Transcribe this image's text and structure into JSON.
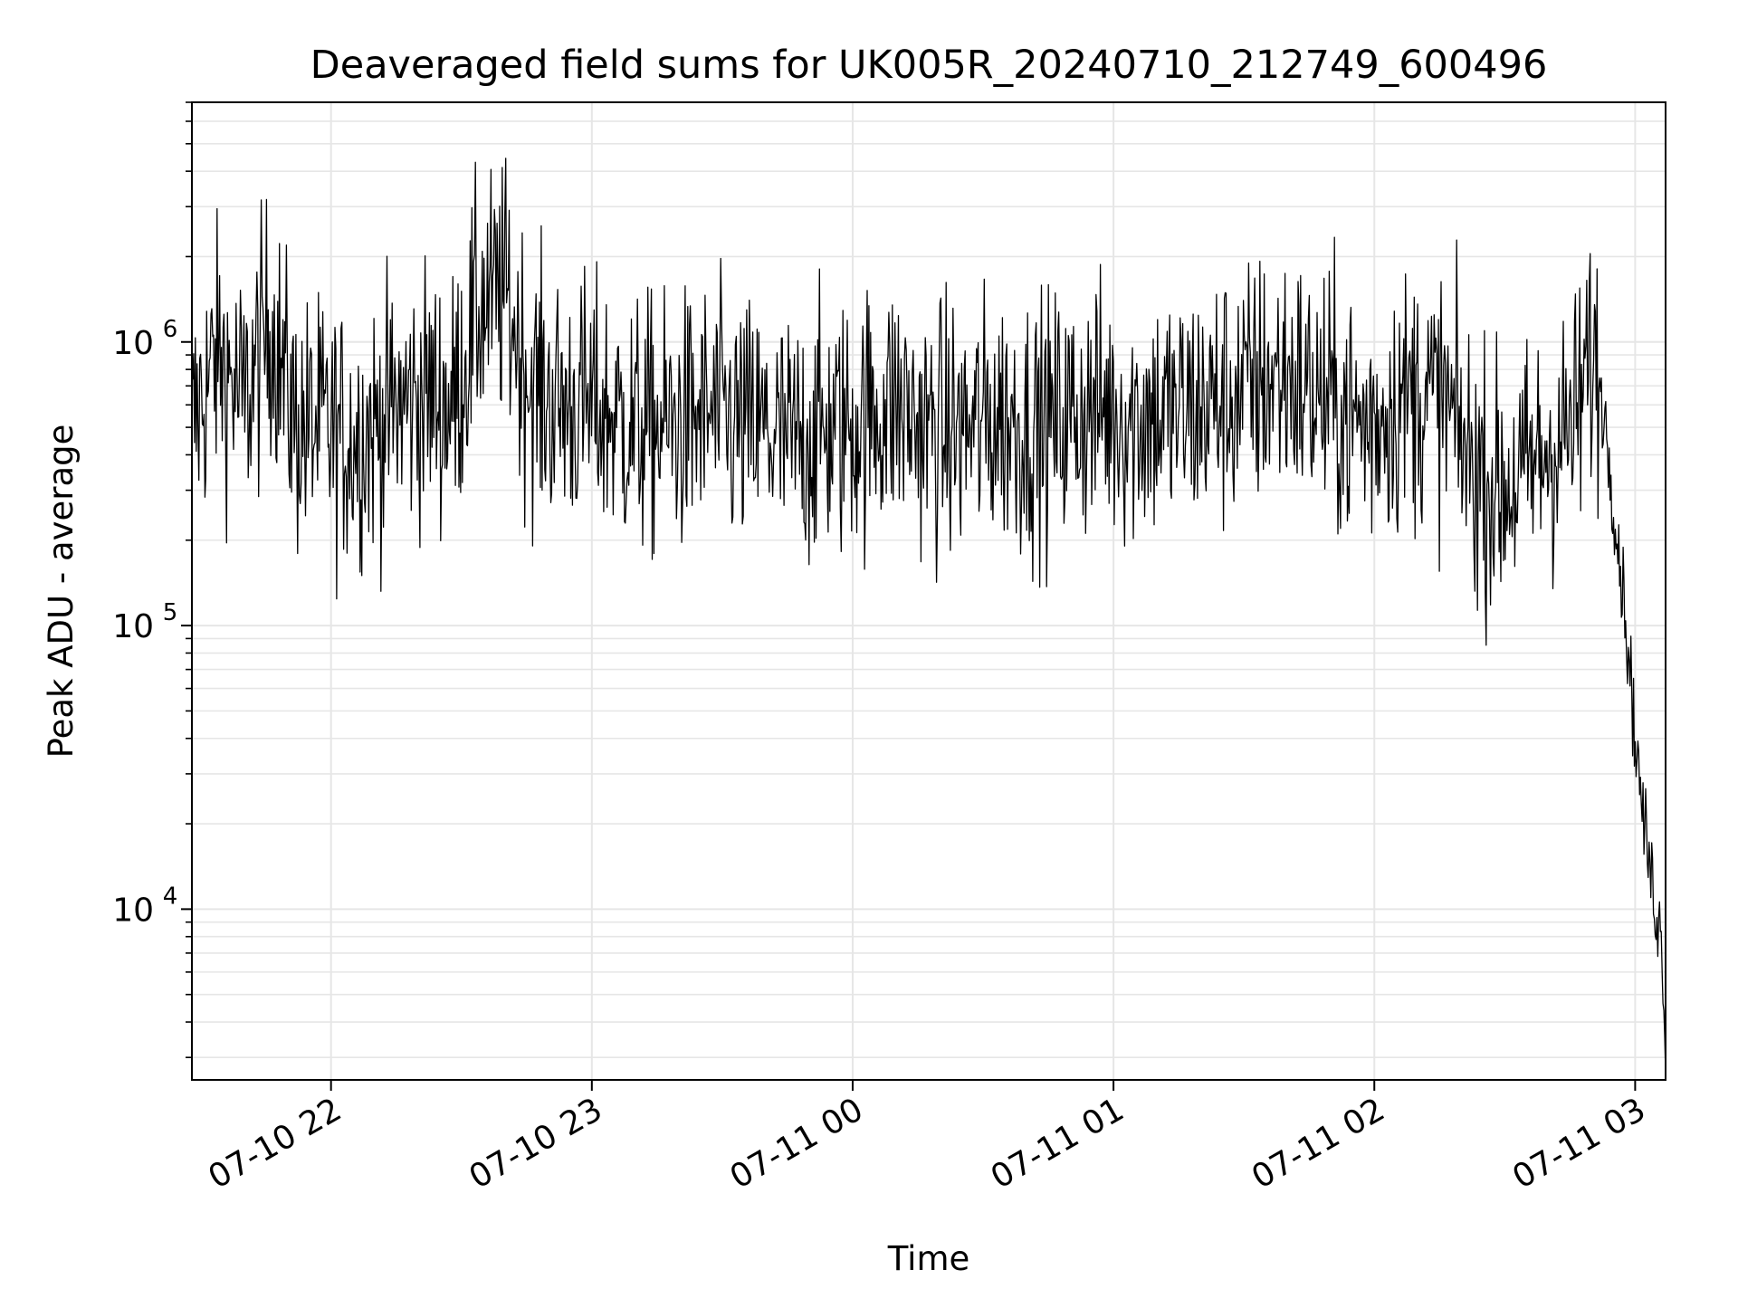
{
  "chart_data": {
    "type": "line",
    "title": "Deaveraged field sums for UK005R_20240710_212749_600496",
    "xlabel": "Time",
    "ylabel": "Peak ADU - average",
    "x_scale": "time",
    "y_scale": "log",
    "xlim": [
      "2024-07-10 21:28",
      "2024-07-11 03:07"
    ],
    "ylim": [
      2500,
      7000000
    ],
    "x_ticks": [
      {
        "value": "2024-07-10 22:00",
        "label": "07-10 22"
      },
      {
        "value": "2024-07-10 23:00",
        "label": "07-10 23"
      },
      {
        "value": "2024-07-11 00:00",
        "label": "07-11 00"
      },
      {
        "value": "2024-07-11 01:00",
        "label": "07-11 01"
      },
      {
        "value": "2024-07-11 02:00",
        "label": "07-11 02"
      },
      {
        "value": "2024-07-11 03:00",
        "label": "07-11 03"
      }
    ],
    "y_ticks": [
      {
        "value": 10000,
        "base": "10",
        "exp": "4"
      },
      {
        "value": 100000,
        "base": "10",
        "exp": "5"
      },
      {
        "value": 1000000,
        "base": "10",
        "exp": "6"
      }
    ],
    "grid": true,
    "line_color": "#000000",
    "grid_color": "#e6e6e6",
    "series": [
      {
        "x": [
          "2024-07-10 21:28",
          "2024-07-10 21:34",
          "2024-07-10 21:40",
          "2024-07-10 21:46",
          "2024-07-10 21:52",
          "2024-07-10 21:58",
          "2024-07-10 22:04",
          "2024-07-10 22:10",
          "2024-07-10 22:16",
          "2024-07-10 22:22",
          "2024-07-10 22:28",
          "2024-07-10 22:34",
          "2024-07-10 22:40",
          "2024-07-10 22:46",
          "2024-07-10 22:52",
          "2024-07-10 22:58",
          "2024-07-10 23:04",
          "2024-07-10 23:10",
          "2024-07-10 23:16",
          "2024-07-10 23:22",
          "2024-07-10 23:28",
          "2024-07-10 23:34",
          "2024-07-10 23:40",
          "2024-07-10 23:46",
          "2024-07-10 23:52",
          "2024-07-10 23:58",
          "2024-07-11 00:04",
          "2024-07-11 00:10",
          "2024-07-11 00:16",
          "2024-07-11 00:22",
          "2024-07-11 00:28",
          "2024-07-11 00:34",
          "2024-07-11 00:40",
          "2024-07-11 00:46",
          "2024-07-11 00:52",
          "2024-07-11 00:58",
          "2024-07-11 01:04",
          "2024-07-11 01:10",
          "2024-07-11 01:16",
          "2024-07-11 01:22",
          "2024-07-11 01:28",
          "2024-07-11 01:34",
          "2024-07-11 01:40",
          "2024-07-11 01:46",
          "2024-07-11 01:52",
          "2024-07-11 01:58",
          "2024-07-11 02:04",
          "2024-07-11 02:10",
          "2024-07-11 02:16",
          "2024-07-11 02:22",
          "2024-07-11 02:28",
          "2024-07-11 02:34",
          "2024-07-11 02:40",
          "2024-07-11 02:46",
          "2024-07-11 02:50",
          "2024-07-11 02:52",
          "2024-07-11 02:54",
          "2024-07-11 02:56",
          "2024-07-11 02:58",
          "2024-07-11 03:00",
          "2024-07-11 03:02",
          "2024-07-11 03:04",
          "2024-07-11 03:06",
          "2024-07-11 03:07"
        ],
        "y": [
          500000,
          900000,
          600000,
          1200000,
          500000,
          500000,
          450000,
          500000,
          600000,
          650000,
          600000,
          1300000,
          1500000,
          700000,
          600000,
          600000,
          550000,
          500000,
          500000,
          520000,
          550000,
          500000,
          480000,
          430000,
          480000,
          500000,
          550000,
          600000,
          500000,
          480000,
          500000,
          540000,
          500000,
          520000,
          560000,
          580000,
          540000,
          560000,
          560000,
          600000,
          640000,
          720000,
          760000,
          650000,
          580000,
          500000,
          600000,
          650000,
          620000,
          380000,
          300000,
          330000,
          420000,
          500000,
          900000,
          700000,
          400000,
          200000,
          100000,
          40000,
          20000,
          12000,
          8000,
          3500
        ],
        "spikiness": 0.55
      }
    ]
  }
}
